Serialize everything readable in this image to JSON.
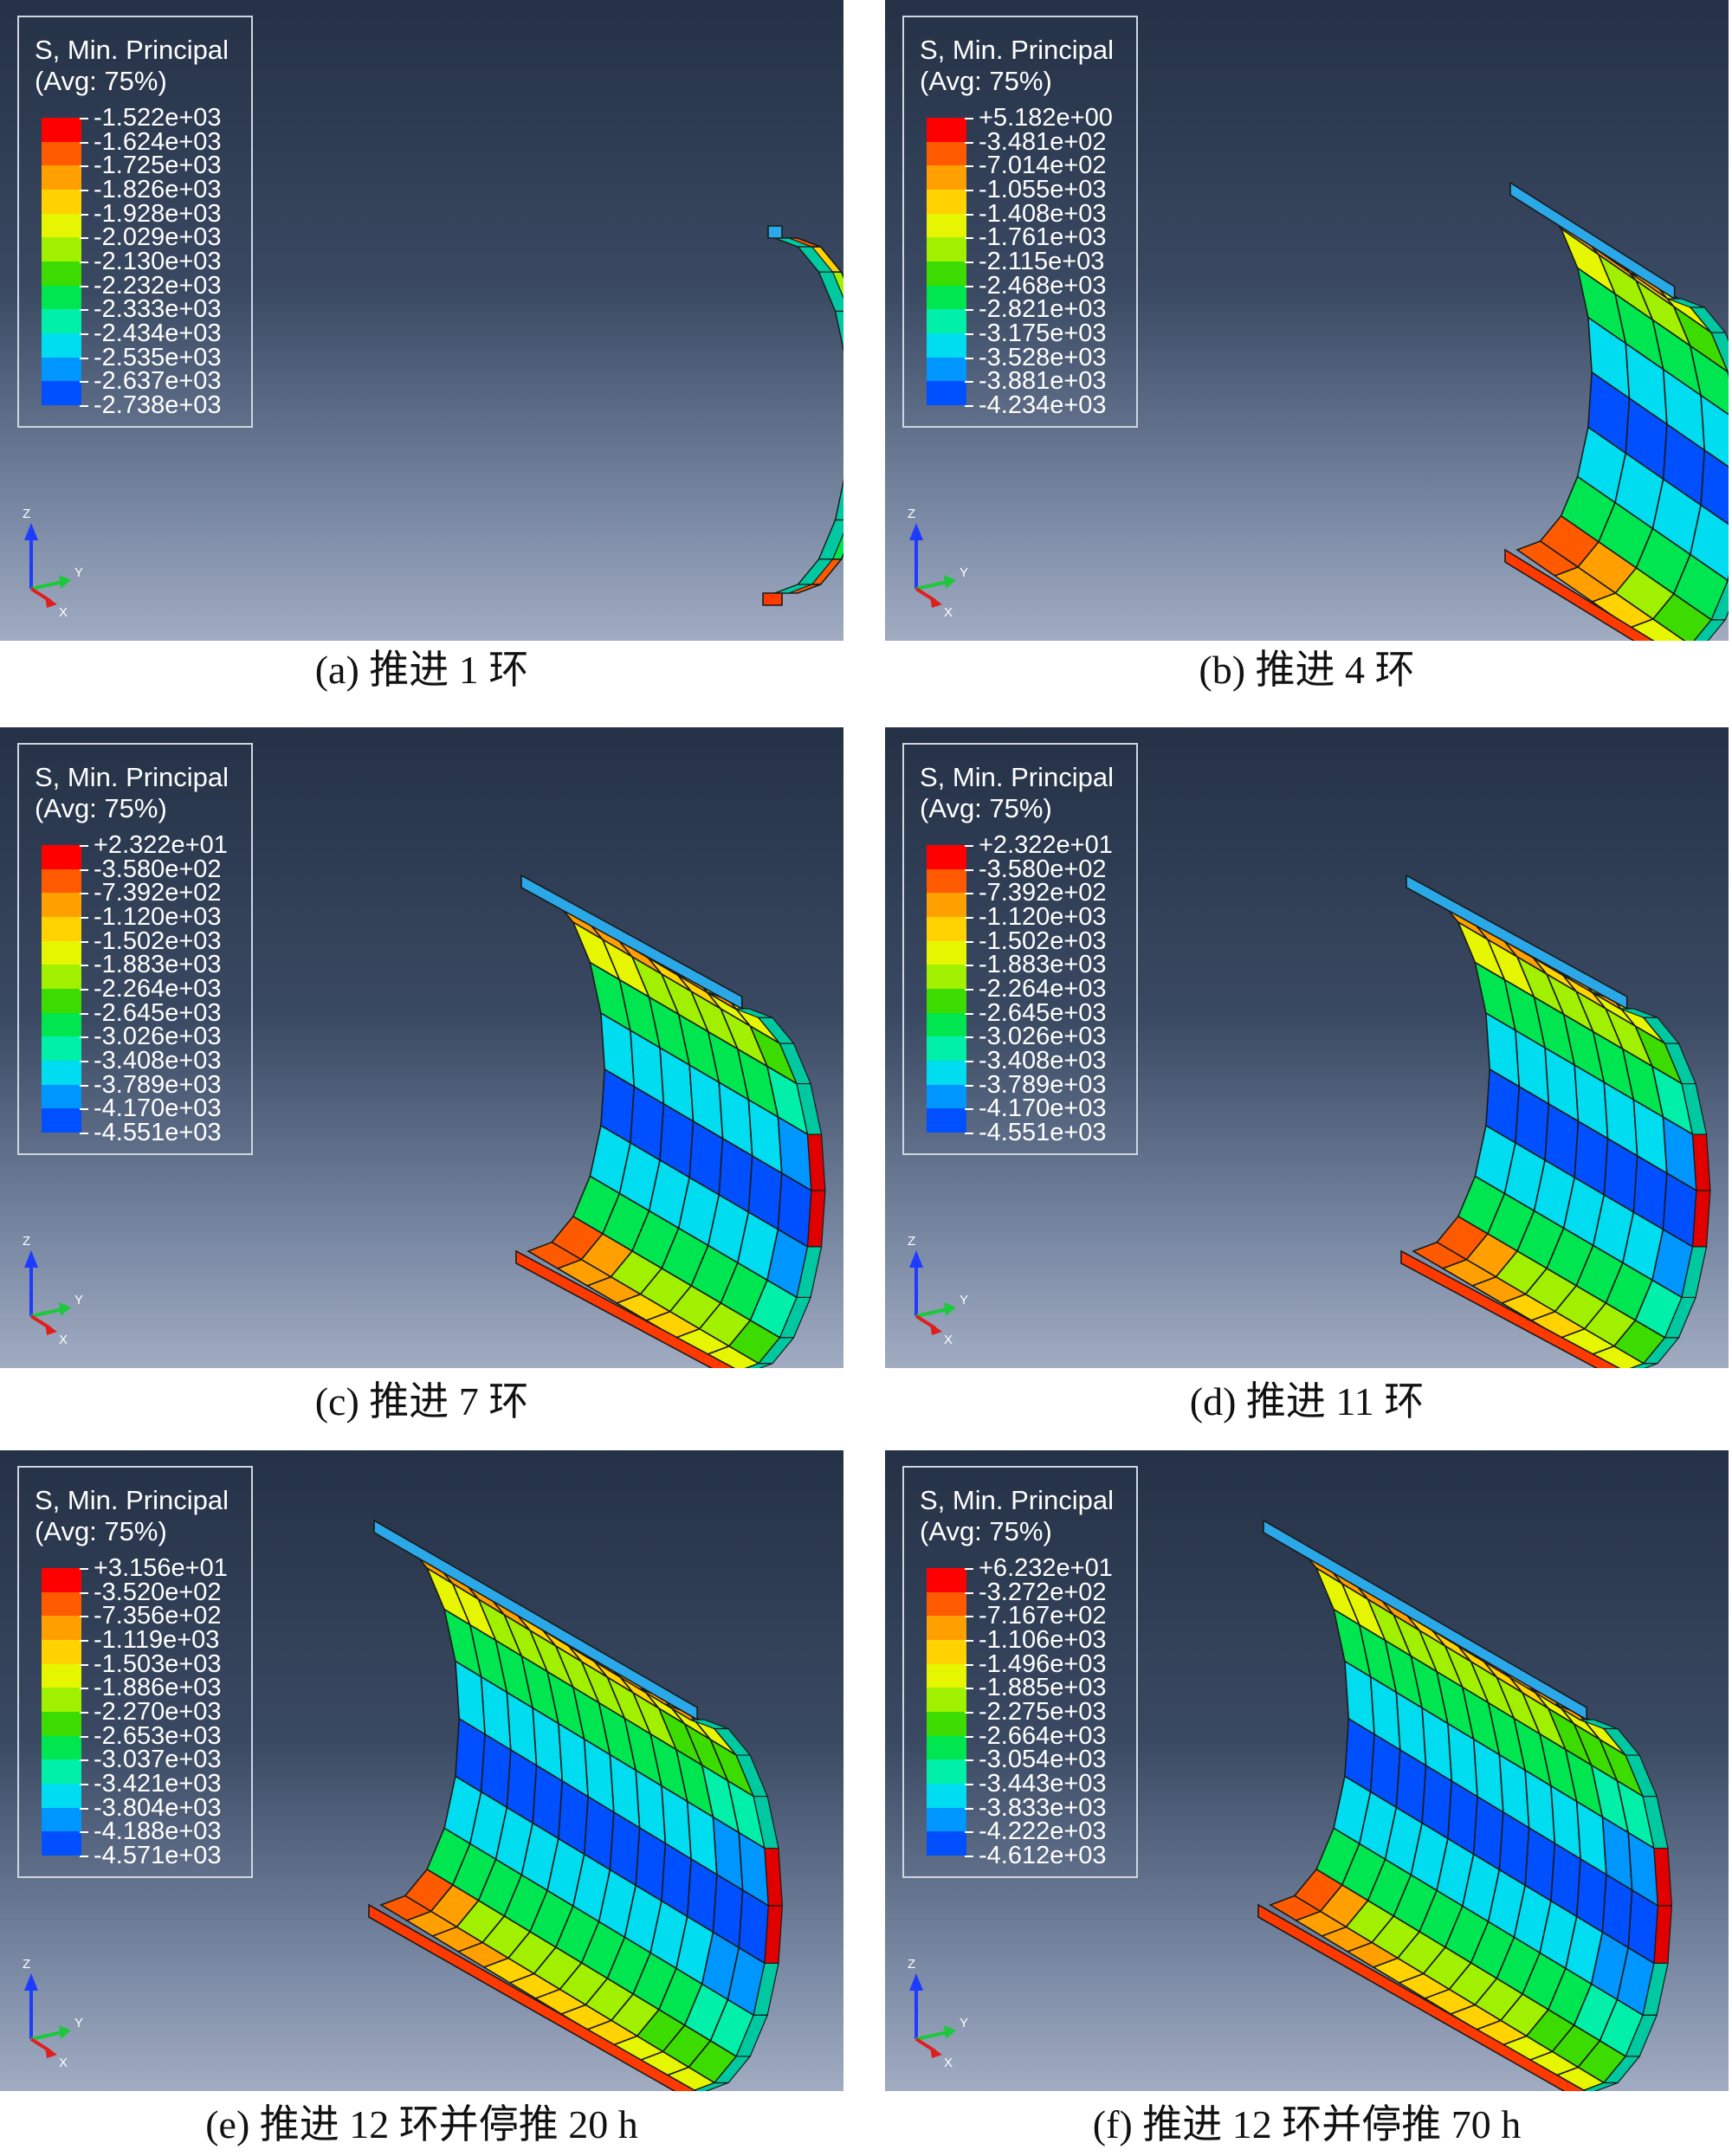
{
  "panels": [
    {
      "id": "a",
      "title": "S, Min. Principal",
      "subtitle": "(Avg: 75%)",
      "ticks": [
        "-1.522e+03",
        "-1.624e+03",
        "-1.725e+03",
        "-1.826e+03",
        "-1.928e+03",
        "-2.029e+03",
        "-2.130e+03",
        "-2.232e+03",
        "-2.333e+03",
        "-2.434e+03",
        "-2.535e+03",
        "-2.637e+03",
        "-2.738e+03"
      ],
      "caption": "(a)  推进 1 环"
    },
    {
      "id": "b",
      "title": "S, Min. Principal",
      "subtitle": "(Avg: 75%)",
      "ticks": [
        "+5.182e+00",
        "-3.481e+02",
        "-7.014e+02",
        "-1.055e+03",
        "-1.408e+03",
        "-1.761e+03",
        "-2.115e+03",
        "-2.468e+03",
        "-2.821e+03",
        "-3.175e+03",
        "-3.528e+03",
        "-3.881e+03",
        "-4.234e+03"
      ],
      "caption": "(b)  推进 4 环"
    },
    {
      "id": "c",
      "title": "S, Min. Principal",
      "subtitle": "(Avg: 75%)",
      "ticks": [
        "+2.322e+01",
        "-3.580e+02",
        "-7.392e+02",
        "-1.120e+03",
        "-1.502e+03",
        "-1.883e+03",
        "-2.264e+03",
        "-2.645e+03",
        "-3.026e+03",
        "-3.408e+03",
        "-3.789e+03",
        "-4.170e+03",
        "-4.551e+03"
      ],
      "caption": "(c)  推进 7 环"
    },
    {
      "id": "d",
      "title": "S, Min. Principal",
      "subtitle": "(Avg: 75%)",
      "ticks": [
        "+2.322e+01",
        "-3.580e+02",
        "-7.392e+02",
        "-1.120e+03",
        "-1.502e+03",
        "-1.883e+03",
        "-2.264e+03",
        "-2.645e+03",
        "-3.026e+03",
        "-3.408e+03",
        "-3.789e+03",
        "-4.170e+03",
        "-4.551e+03"
      ],
      "caption": "(d)  推进 11 环"
    },
    {
      "id": "e",
      "title": "S, Min. Principal",
      "subtitle": "(Avg: 75%)",
      "ticks": [
        "+3.156e+01",
        "-3.520e+02",
        "-7.356e+02",
        "-1.119e+03",
        "-1.503e+03",
        "-1.886e+03",
        "-2.270e+03",
        "-2.653e+03",
        "-3.037e+03",
        "-3.421e+03",
        "-3.804e+03",
        "-4.188e+03",
        "-4.571e+03"
      ],
      "caption": "(e)  推进 12 环并停推 20 h"
    },
    {
      "id": "f",
      "title": "S, Min. Principal",
      "subtitle": "(Avg: 75%)",
      "ticks": [
        "+6.232e+01",
        "-3.272e+02",
        "-7.167e+02",
        "-1.106e+03",
        "-1.496e+03",
        "-1.885e+03",
        "-2.275e+03",
        "-2.664e+03",
        "-3.054e+03",
        "-3.443e+03",
        "-3.833e+03",
        "-4.222e+03",
        "-4.612e+03"
      ],
      "caption": "(f)  推进 12 环并停推 70 h"
    }
  ],
  "colorbar": [
    "#ff0000",
    "#ff5a00",
    "#ffa000",
    "#ffd200",
    "#e6f500",
    "#a0f000",
    "#3cdc00",
    "#00e650",
    "#00f0aa",
    "#00dcf0",
    "#0096ff",
    "#0050ff",
    "#0000e6"
  ],
  "axes": {
    "z": "Z",
    "y": "Y",
    "x": "X"
  }
}
